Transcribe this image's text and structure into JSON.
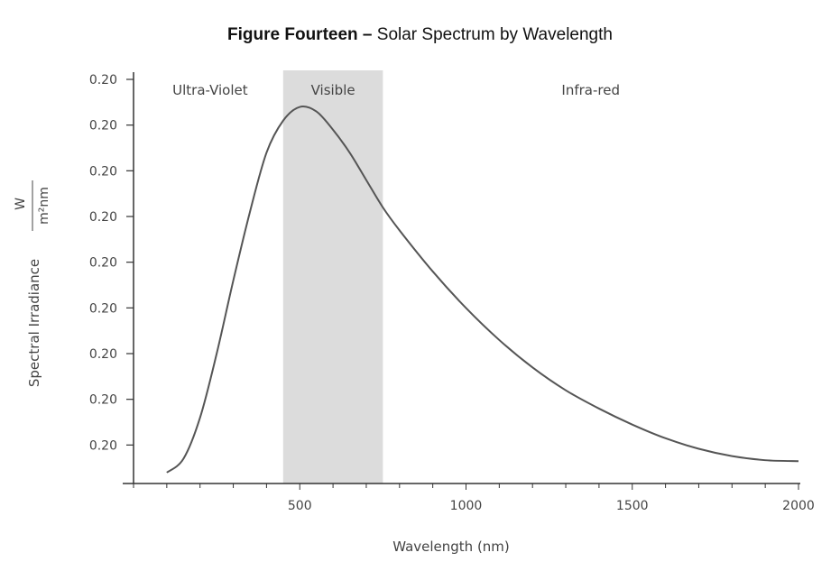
{
  "figure": {
    "title_bold": "Figure Fourteen –",
    "title_rest": "Solar Spectrum by Wavelength"
  },
  "chart_data": {
    "type": "line",
    "xlabel": "Wavelength (nm)",
    "ylabel": "Spectral Irradiance",
    "ylabel_unit_numerator": "W",
    "ylabel_unit_denominator": "m²nm",
    "xlim": [
      0,
      2000
    ],
    "x_ticks": [
      500,
      1000,
      1500,
      2000
    ],
    "y_tick_labels": [
      "0.20",
      "0.20",
      "0.20",
      "0.20",
      "0.20",
      "0.20",
      "0.20",
      "0.20",
      "0.20"
    ],
    "ylim": [
      0,
      9
    ],
    "grid": false,
    "regions": [
      {
        "label": "Ultra-Violet",
        "x_range": [
          0,
          450
        ],
        "shaded": false
      },
      {
        "label": "Visible",
        "x_range": [
          450,
          750
        ],
        "shaded": true,
        "color": "#dcdcdc"
      },
      {
        "label": "Infra-red",
        "x_range": [
          750,
          2000
        ],
        "shaded": false
      }
    ],
    "series": [
      {
        "color": "#555555",
        "points": [
          [
            100,
            0.2
          ],
          [
            150,
            0.5
          ],
          [
            200,
            1.4
          ],
          [
            250,
            2.8
          ],
          [
            300,
            4.4
          ],
          [
            350,
            5.9
          ],
          [
            400,
            7.2
          ],
          [
            450,
            7.9
          ],
          [
            500,
            8.2
          ],
          [
            550,
            8.1
          ],
          [
            600,
            7.7
          ],
          [
            650,
            7.2
          ],
          [
            700,
            6.6
          ],
          [
            750,
            6.0
          ],
          [
            800,
            5.5
          ],
          [
            900,
            4.6
          ],
          [
            1000,
            3.8
          ],
          [
            1100,
            3.1
          ],
          [
            1200,
            2.5
          ],
          [
            1300,
            2.0
          ],
          [
            1400,
            1.6
          ],
          [
            1500,
            1.25
          ],
          [
            1600,
            0.95
          ],
          [
            1700,
            0.72
          ],
          [
            1800,
            0.56
          ],
          [
            1900,
            0.47
          ],
          [
            2000,
            0.45
          ]
        ]
      }
    ]
  }
}
